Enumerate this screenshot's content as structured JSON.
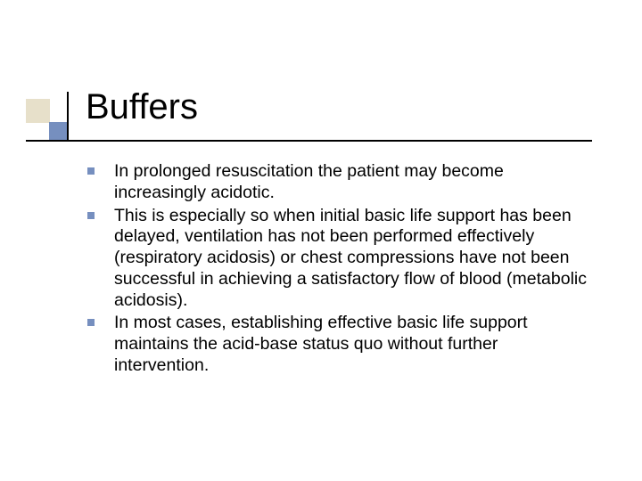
{
  "slide": {
    "title": "Buffers",
    "title_fontsize": 40,
    "body_fontsize": 19.5,
    "colors": {
      "background": "#ffffff",
      "text": "#000000",
      "accent_blue": "#768fbf",
      "accent_beige": "#e7e0ca",
      "rule": "#000000"
    },
    "bullets": [
      "In prolonged resuscitation the patient may become increasingly acidotic.",
      "This is especially so when initial basic life support has been delayed, ventilation has not been performed effectively (respiratory acidosis) or chest compressions have not been successful in achieving a satisfactory flow of blood (metabolic acidosis).",
      "In most cases, establishing effective basic life support maintains the acid-base status quo without further intervention."
    ]
  }
}
